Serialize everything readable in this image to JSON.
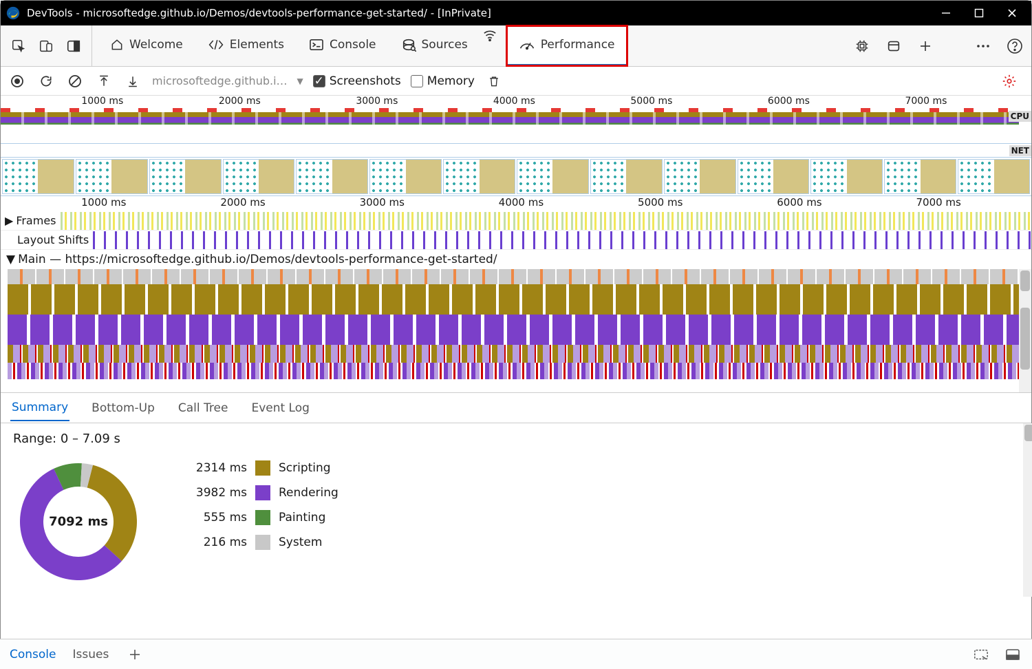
{
  "window": {
    "title": "DevTools - microsoftedge.github.io/Demos/devtools-performance-get-started/ - [InPrivate]"
  },
  "tabs": {
    "items": [
      "Welcome",
      "Elements",
      "Console",
      "Sources",
      "Performance"
    ],
    "active_index": 4,
    "highlighted_index": 4
  },
  "toolbar": {
    "url_short": "microsoftedge.github.i…",
    "screenshots_label": "Screenshots",
    "screenshots_checked": true,
    "memory_label": "Memory",
    "memory_checked": false
  },
  "overview": {
    "ticks": [
      "1000 ms",
      "2000 ms",
      "3000 ms",
      "4000 ms",
      "5000 ms",
      "6000 ms",
      "7000 ms"
    ],
    "tick_positions_pct": [
      10,
      23.5,
      37,
      50.5,
      64,
      77.5,
      91
    ],
    "cpu_label": "CPU",
    "net_label": "NET",
    "colors": {
      "task_red": "#e53935",
      "scripting": "#a08415",
      "rendering": "#7b3fc9",
      "painting": "#4f8f3d",
      "system": "#c8c8c8"
    }
  },
  "timeline": {
    "ticks": [
      "1000 ms",
      "2000 ms",
      "3000 ms",
      "4000 ms",
      "5000 ms",
      "6000 ms",
      "7000 ms"
    ],
    "tick_positions_pct": [
      10,
      23.5,
      37,
      50.5,
      64,
      77.5,
      91
    ],
    "frames_label": "Frames",
    "layout_shifts_label": "Layout Shifts",
    "main_label": "Main — https://microsoftedge.github.io/Demos/devtools-performance-get-started/"
  },
  "detail_tabs": {
    "items": [
      "Summary",
      "Bottom-Up",
      "Call Tree",
      "Event Log"
    ],
    "active_index": 0
  },
  "summary": {
    "range_text": "Range: 0 – 7.09 s",
    "total_label": "7092 ms",
    "donut": {
      "radius": 85,
      "thickness": 34,
      "segments": [
        {
          "label": "Scripting",
          "ms": "2314 ms",
          "value": 2314,
          "color": "#a08415"
        },
        {
          "label": "Rendering",
          "ms": "3982 ms",
          "value": 3982,
          "color": "#7b3fc9"
        },
        {
          "label": "Painting",
          "ms": "555 ms",
          "value": 555,
          "color": "#4f8f3d"
        },
        {
          "label": "System",
          "ms": "216 ms",
          "value": 216,
          "color": "#c8c8c8"
        }
      ]
    }
  },
  "bottom": {
    "console": "Console",
    "issues": "Issues"
  }
}
